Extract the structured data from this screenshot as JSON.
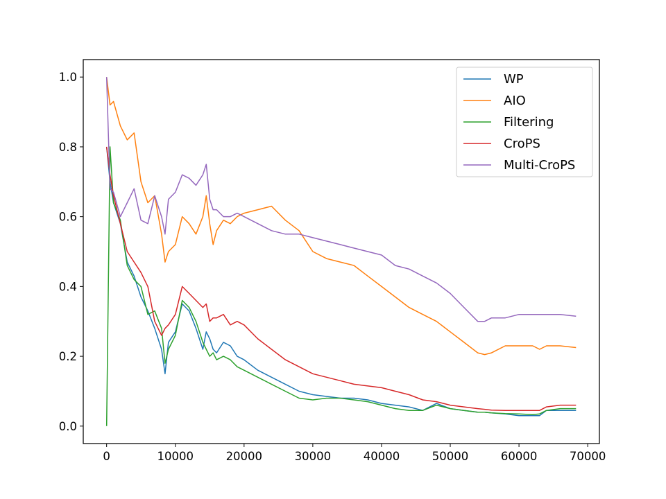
{
  "chart_data": {
    "type": "line",
    "title": "",
    "xlabel": "",
    "ylabel": "",
    "xlim": [
      -3400,
      71700
    ],
    "ylim": [
      -0.05,
      1.05
    ],
    "grid": false,
    "legend_position": "top-right",
    "x_ticks": [
      0,
      10000,
      20000,
      30000,
      40000,
      50000,
      60000,
      70000
    ],
    "x_tick_labels": [
      "0",
      "10000",
      "20000",
      "30000",
      "40000",
      "50000",
      "60000",
      "70000"
    ],
    "y_ticks": [
      0.0,
      0.2,
      0.4,
      0.6,
      0.8,
      1.0
    ],
    "y_tick_labels": [
      "0.0",
      "0.2",
      "0.4",
      "0.6",
      "0.8",
      "1.0"
    ],
    "x": [
      0,
      500,
      1000,
      2000,
      3000,
      4000,
      5000,
      6000,
      7000,
      8000,
      8500,
      9000,
      10000,
      11000,
      12000,
      13000,
      14000,
      14500,
      15000,
      15500,
      16000,
      17000,
      18000,
      19000,
      20000,
      22000,
      24000,
      26000,
      28000,
      30000,
      32000,
      34000,
      36000,
      38000,
      40000,
      42000,
      44000,
      46000,
      48000,
      50000,
      52000,
      54000,
      55000,
      56000,
      58000,
      60000,
      62000,
      63000,
      64000,
      66000,
      68300
    ],
    "series": [
      {
        "name": "WP",
        "color": "#1f77b4",
        "values": [
          0.8,
          0.7,
          0.64,
          0.58,
          0.47,
          0.43,
          0.37,
          0.33,
          0.28,
          0.22,
          0.15,
          0.24,
          0.27,
          0.35,
          0.33,
          0.28,
          0.22,
          0.27,
          0.25,
          0.22,
          0.21,
          0.24,
          0.23,
          0.2,
          0.19,
          0.16,
          0.14,
          0.12,
          0.1,
          0.09,
          0.085,
          0.08,
          0.08,
          0.075,
          0.065,
          0.06,
          0.055,
          0.045,
          0.065,
          0.05,
          0.045,
          0.04,
          0.04,
          0.038,
          0.035,
          0.03,
          0.03,
          0.03,
          0.045,
          0.045,
          0.045
        ]
      },
      {
        "name": "AIO",
        "color": "#ff7f0e",
        "values": [
          1.0,
          0.92,
          0.93,
          0.86,
          0.82,
          0.84,
          0.7,
          0.64,
          0.66,
          0.55,
          0.47,
          0.5,
          0.52,
          0.6,
          0.58,
          0.55,
          0.6,
          0.66,
          0.58,
          0.52,
          0.56,
          0.59,
          0.58,
          0.6,
          0.61,
          0.62,
          0.63,
          0.59,
          0.56,
          0.5,
          0.48,
          0.47,
          0.46,
          0.43,
          0.4,
          0.37,
          0.34,
          0.32,
          0.3,
          0.27,
          0.24,
          0.21,
          0.205,
          0.21,
          0.23,
          0.23,
          0.23,
          0.22,
          0.23,
          0.23,
          0.225
        ]
      },
      {
        "name": "Filtering",
        "color": "#2ca02c",
        "values": [
          0.0,
          0.8,
          0.64,
          0.59,
          0.46,
          0.42,
          0.4,
          0.32,
          0.33,
          0.28,
          0.18,
          0.22,
          0.26,
          0.36,
          0.34,
          0.3,
          0.24,
          0.22,
          0.2,
          0.21,
          0.19,
          0.2,
          0.19,
          0.17,
          0.16,
          0.14,
          0.12,
          0.1,
          0.08,
          0.075,
          0.08,
          0.08,
          0.075,
          0.07,
          0.06,
          0.05,
          0.045,
          0.045,
          0.06,
          0.05,
          0.045,
          0.04,
          0.04,
          0.038,
          0.036,
          0.035,
          0.033,
          0.035,
          0.045,
          0.05,
          0.05
        ]
      },
      {
        "name": "CroPS",
        "color": "#d62728",
        "values": [
          0.8,
          0.72,
          0.66,
          0.58,
          0.5,
          0.47,
          0.44,
          0.4,
          0.3,
          0.26,
          0.28,
          0.29,
          0.32,
          0.4,
          0.38,
          0.36,
          0.34,
          0.35,
          0.3,
          0.31,
          0.31,
          0.32,
          0.29,
          0.3,
          0.29,
          0.25,
          0.22,
          0.19,
          0.17,
          0.15,
          0.14,
          0.13,
          0.12,
          0.115,
          0.11,
          0.1,
          0.09,
          0.075,
          0.07,
          0.06,
          0.055,
          0.05,
          0.048,
          0.046,
          0.045,
          0.045,
          0.045,
          0.045,
          0.055,
          0.06,
          0.06
        ]
      },
      {
        "name": "Multi-CroPS",
        "color": "#9467bd",
        "values": [
          1.0,
          0.68,
          0.67,
          0.6,
          0.64,
          0.68,
          0.59,
          0.58,
          0.66,
          0.6,
          0.55,
          0.65,
          0.67,
          0.72,
          0.71,
          0.69,
          0.72,
          0.75,
          0.65,
          0.62,
          0.62,
          0.6,
          0.6,
          0.61,
          0.6,
          0.58,
          0.56,
          0.55,
          0.55,
          0.54,
          0.53,
          0.52,
          0.51,
          0.5,
          0.49,
          0.46,
          0.45,
          0.43,
          0.41,
          0.38,
          0.34,
          0.3,
          0.3,
          0.31,
          0.31,
          0.32,
          0.32,
          0.32,
          0.32,
          0.32,
          0.315
        ]
      }
    ]
  }
}
